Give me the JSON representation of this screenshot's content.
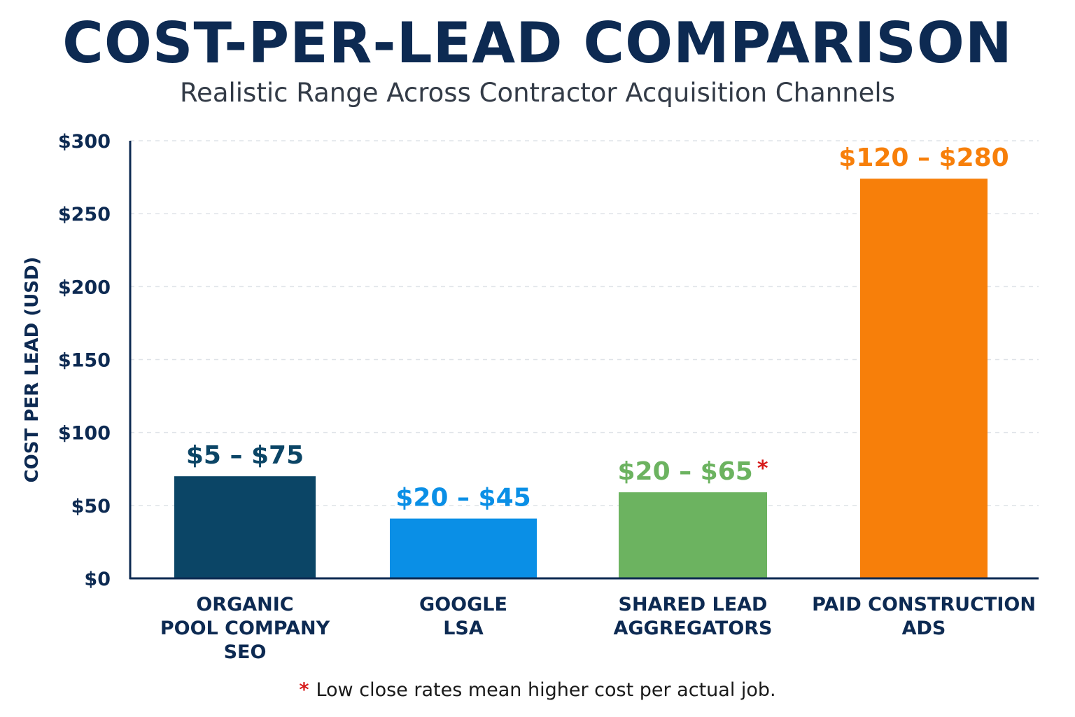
{
  "chart_data": {
    "type": "bar",
    "title": "COST-PER-LEAD COMPARISON",
    "subtitle": "Realistic Range Across Contractor Acquisition Channels",
    "ylabel": "COST PER LEAD (USD)",
    "xlabel": "",
    "ylim": [
      0,
      300
    ],
    "yticks": [
      0,
      50,
      100,
      150,
      200,
      250,
      300
    ],
    "ytick_labels": [
      "$0",
      "$50",
      "$100",
      "$150",
      "$200",
      "$250",
      "$300"
    ],
    "grid": true,
    "categories": [
      [
        "ORGANIC",
        "POOL COMPANY",
        "SEO"
      ],
      [
        "GOOGLE",
        "LSA"
      ],
      [
        "SHARED LEAD",
        "AGGREGATORS"
      ],
      [
        "PAID CONSTRUCTION",
        "ADS"
      ]
    ],
    "values": [
      70,
      41,
      59,
      274
    ],
    "data_labels": [
      "$5 – $75",
      "$20 – $45",
      "$20 – $65",
      "$120 – $280"
    ],
    "label_markers": [
      "",
      "",
      "*",
      ""
    ],
    "colors": [
      "#0b4566",
      "#0a8fe6",
      "#6cb360",
      "#f77f0a"
    ],
    "footnote": {
      "marker": "*",
      "text": "Low close rates mean higher cost per actual job."
    }
  },
  "colors": {
    "title": "#0d2a52",
    "axis": "#0d2a52",
    "footnote_marker": "#d61a1a"
  }
}
